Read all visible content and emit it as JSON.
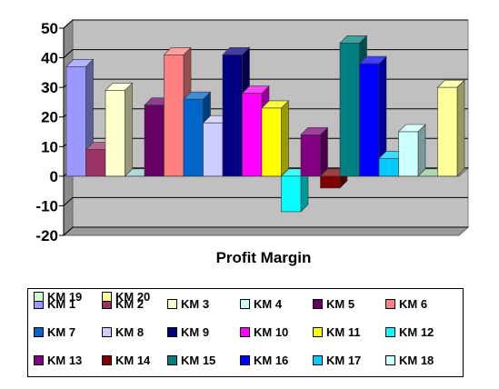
{
  "chart_data": {
    "type": "bar",
    "title": "",
    "xlabel": "Profit Margin",
    "ylabel": "",
    "ylim": [
      -20,
      50
    ],
    "yticks": [
      50,
      40,
      30,
      20,
      10,
      0,
      -10,
      -20
    ],
    "grid": true,
    "legend_position": "bottom",
    "categories": [
      "Profit Margin"
    ],
    "series": [
      {
        "name": "KM 1",
        "value": 37,
        "color": "#9999ff"
      },
      {
        "name": "KM 2",
        "value": 9,
        "color": "#993366"
      },
      {
        "name": "KM 3",
        "value": 29,
        "color": "#ffffcc"
      },
      {
        "name": "KM 4",
        "value": 0,
        "color": "#ccffff"
      },
      {
        "name": "KM 5",
        "value": 24,
        "color": "#660066"
      },
      {
        "name": "KM 6",
        "value": 41,
        "color": "#ff8080"
      },
      {
        "name": "KM 7",
        "value": 26,
        "color": "#0066cc"
      },
      {
        "name": "KM 8",
        "value": 18,
        "color": "#ccccff"
      },
      {
        "name": "KM 9",
        "value": 41,
        "color": "#000080"
      },
      {
        "name": "KM 10",
        "value": 28,
        "color": "#ff00ff"
      },
      {
        "name": "KM 11",
        "value": 23,
        "color": "#ffff00"
      },
      {
        "name": "KM 12",
        "value": -12,
        "color": "#00ffff"
      },
      {
        "name": "KM 13",
        "value": 14,
        "color": "#800080"
      },
      {
        "name": "KM 14",
        "value": -4,
        "color": "#800000"
      },
      {
        "name": "KM 15",
        "value": 45,
        "color": "#008080"
      },
      {
        "name": "KM 16",
        "value": 38,
        "color": "#0000ff"
      },
      {
        "name": "KM 17",
        "value": 6,
        "color": "#00ccff"
      },
      {
        "name": "KM 18",
        "value": 15,
        "color": "#ccffff"
      },
      {
        "name": "KM 19",
        "value": 0,
        "color": "#ccffcc"
      },
      {
        "name": "KM 20",
        "value": 30,
        "color": "#ffff99"
      }
    ]
  }
}
